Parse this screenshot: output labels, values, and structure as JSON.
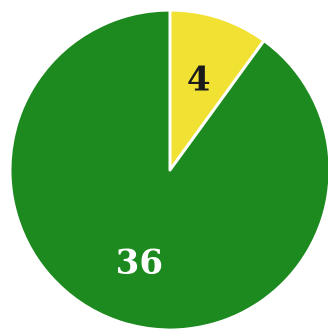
{
  "chart_data": {
    "type": "pie",
    "slices": [
      {
        "value": 4,
        "label": "4",
        "color": "#f0e133",
        "label_color": "#1a1a1a"
      },
      {
        "value": 36,
        "label": "36",
        "color": "#1d8a1f",
        "label_color": "#ffffff"
      }
    ],
    "start_angle_deg": 0,
    "direction": "clockwise",
    "title": "",
    "legend": "none"
  }
}
